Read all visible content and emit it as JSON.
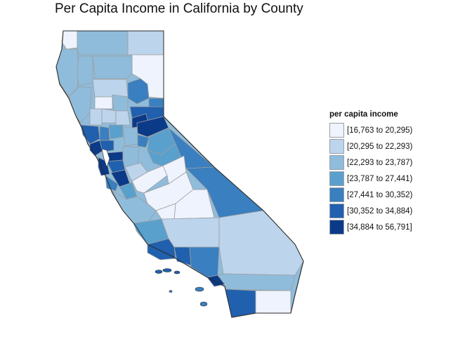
{
  "title": "Per Capita Income in California by County",
  "legend": {
    "title": "per capita income",
    "classes": [
      {
        "label": "[16,763 to 20,295)",
        "color": "#eef3fd"
      },
      {
        "label": "[20,295 to 22,293)",
        "color": "#bcd4ec"
      },
      {
        "label": "[22,293 to 23,787)",
        "color": "#8fbcdb"
      },
      {
        "label": "[23,787 to 27,441)",
        "color": "#5aa0cd"
      },
      {
        "label": "[27,441 to 30,352)",
        "color": "#3a7fbf"
      },
      {
        "label": "[30,352 to 34,884)",
        "color": "#2060ae"
      },
      {
        "label": "[34,884 to 56,791]",
        "color": "#0b3a88"
      }
    ]
  },
  "colors": {
    "outline": "#2b2b2b",
    "county_border": "#9e9e9e"
  }
}
